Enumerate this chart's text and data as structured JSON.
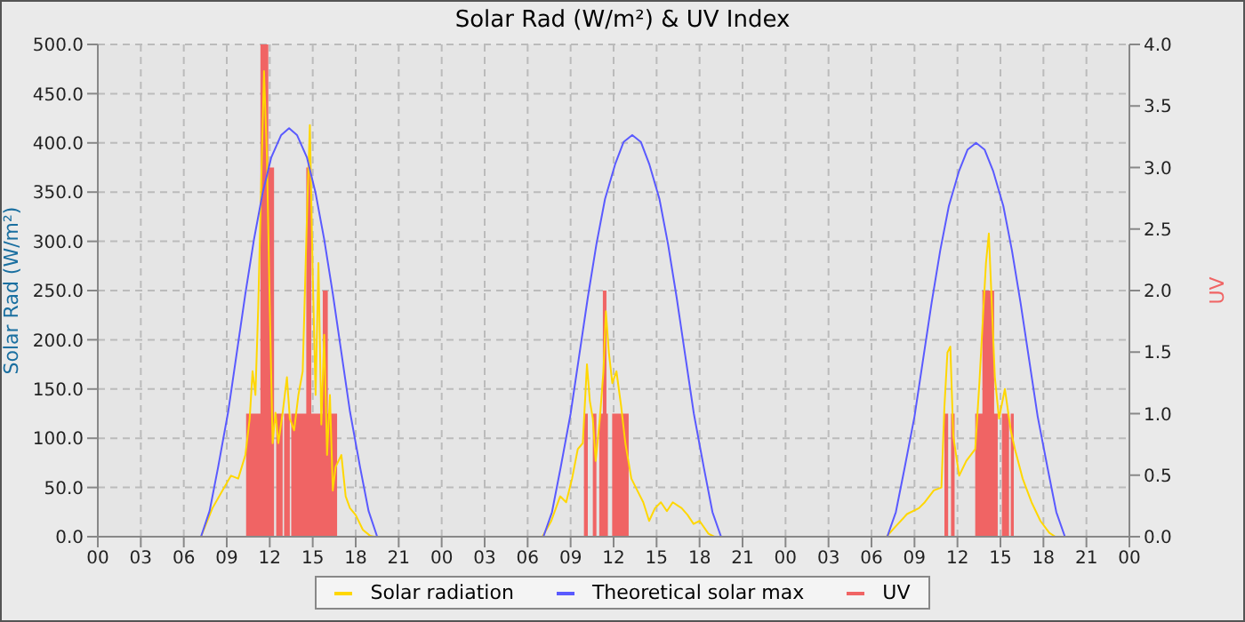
{
  "chart_data": {
    "type": "line",
    "title": "Solar Rad (W/m²) &  UV Index",
    "ylabel": "Solar Rad (W/m²)",
    "y2label": "UV",
    "xlim": [
      0,
      72
    ],
    "xticks": [
      {
        "value": 0,
        "label": "00"
      },
      {
        "value": 3,
        "label": "03"
      },
      {
        "value": 6,
        "label": "06"
      },
      {
        "value": 9,
        "label": "09"
      },
      {
        "value": 12,
        "label": "12"
      },
      {
        "value": 15,
        "label": "15"
      },
      {
        "value": 18,
        "label": "18"
      },
      {
        "value": 21,
        "label": "21"
      },
      {
        "value": 24,
        "label": "00"
      },
      {
        "value": 27,
        "label": "03"
      },
      {
        "value": 30,
        "label": "06"
      },
      {
        "value": 33,
        "label": "09"
      },
      {
        "value": 36,
        "label": "12"
      },
      {
        "value": 39,
        "label": "15"
      },
      {
        "value": 42,
        "label": "18"
      },
      {
        "value": 45,
        "label": "21"
      },
      {
        "value": 48,
        "label": "00"
      },
      {
        "value": 51,
        "label": "03"
      },
      {
        "value": 54,
        "label": "06"
      },
      {
        "value": 57,
        "label": "09"
      },
      {
        "value": 60,
        "label": "12"
      },
      {
        "value": 63,
        "label": "15"
      },
      {
        "value": 66,
        "label": "18"
      },
      {
        "value": 69,
        "label": "21"
      },
      {
        "value": 72,
        "label": "00"
      }
    ],
    "ylim": [
      0,
      500
    ],
    "yticks": [
      {
        "value": 0,
        "label": "0.0"
      },
      {
        "value": 50,
        "label": "50.0"
      },
      {
        "value": 100,
        "label": "100.0"
      },
      {
        "value": 150,
        "label": "150.0"
      },
      {
        "value": 200,
        "label": "200.0"
      },
      {
        "value": 250,
        "label": "250.0"
      },
      {
        "value": 300,
        "label": "300.0"
      },
      {
        "value": 350,
        "label": "350.0"
      },
      {
        "value": 400,
        "label": "400.0"
      },
      {
        "value": 450,
        "label": "450.0"
      },
      {
        "value": 500,
        "label": "500.0"
      }
    ],
    "y2lim": [
      0,
      4
    ],
    "y2ticks": [
      {
        "value": 0,
        "label": "0.0"
      },
      {
        "value": 0.5,
        "label": "0.5"
      },
      {
        "value": 1,
        "label": "1.0"
      },
      {
        "value": 1.5,
        "label": "1.5"
      },
      {
        "value": 2,
        "label": "2.0"
      },
      {
        "value": 2.5,
        "label": "2.5"
      },
      {
        "value": 3,
        "label": "3.0"
      },
      {
        "value": 3.5,
        "label": "3.5"
      },
      {
        "value": 4,
        "label": "4.0"
      }
    ],
    "grid": true,
    "legend": "bottom",
    "series": [
      {
        "name": "Solar radiation",
        "color": "#ffd700",
        "x": [
          0,
          7.2,
          8.0,
          8.7,
          9.3,
          9.8,
          10.3,
          10.6,
          10.8,
          11.0,
          11.2,
          11.4,
          11.6,
          11.8,
          12.0,
          12.2,
          12.4,
          12.6,
          12.9,
          13.2,
          13.4,
          13.7,
          14.0,
          14.3,
          14.6,
          14.8,
          15.0,
          15.2,
          15.4,
          15.6,
          15.8,
          16.0,
          16.2,
          16.4,
          16.6,
          17.0,
          17.3,
          17.6,
          18.0,
          18.5,
          19.0,
          19.3,
          31.03,
          31.65,
          32.27,
          32.69,
          33.1,
          33.5,
          33.85,
          34.14,
          34.34,
          34.55,
          34.75,
          35.04,
          35.29,
          35.46,
          35.67,
          35.91,
          36.2,
          36.53,
          36.82,
          37.24,
          37.65,
          38.07,
          38.48,
          38.89,
          39.3,
          39.72,
          40.13,
          40.75,
          41.17,
          41.58,
          42.0,
          42.62,
          43.03,
          55.04,
          55.66,
          56.48,
          57.31,
          57.72,
          58.35,
          58.88,
          59.09,
          59.3,
          59.5,
          59.71,
          60.12,
          60.62,
          61.24,
          61.53,
          61.78,
          61.99,
          62.19,
          62.4,
          62.61,
          62.9,
          63.31,
          63.72,
          64.01,
          64.55,
          65.17,
          65.79,
          66.41,
          66.83,
          72
        ],
        "values": [
          0,
          0,
          29,
          47,
          62,
          59,
          83,
          120,
          168,
          144,
          235,
          357,
          473,
          387,
          235,
          95,
          126,
          95,
          126,
          162,
          120,
          108,
          144,
          168,
          327,
          418,
          266,
          144,
          278,
          114,
          205,
          83,
          144,
          47,
          71,
          83,
          41,
          29,
          22,
          7,
          1,
          0,
          0,
          16,
          41,
          35,
          59,
          89,
          95,
          175,
          138,
          120,
          77,
          120,
          168,
          229,
          187,
          156,
          168,
          132,
          95,
          59,
          47,
          35,
          16,
          29,
          35,
          26,
          35,
          29,
          22,
          13,
          16,
          3,
          0,
          0,
          10,
          23,
          29,
          35,
          47,
          50,
          132,
          187,
          193,
          102,
          62,
          77,
          89,
          156,
          223,
          278,
          308,
          235,
          162,
          120,
          150,
          108,
          89,
          59,
          35,
          16,
          4,
          0,
          0
        ]
      },
      {
        "name": "Theoretical solar max",
        "color": "#5a5aff",
        "x": [
          0,
          7.2,
          7.8,
          8.4,
          9.1,
          9.7,
          10.3,
          10.9,
          11.5,
          12.1,
          12.8,
          13.35,
          13.9,
          14.6,
          15.2,
          15.8,
          16.4,
          17.0,
          17.6,
          18.3,
          18.9,
          19.5,
          31.1,
          31.7,
          32.3,
          33.0,
          33.6,
          34.2,
          34.8,
          35.4,
          36.1,
          36.7,
          37.3,
          37.9,
          38.5,
          39.2,
          39.8,
          40.4,
          41.0,
          41.6,
          42.3,
          42.9,
          43.5,
          55.1,
          55.7,
          56.3,
          57.0,
          57.6,
          58.2,
          58.8,
          59.4,
          60.1,
          60.7,
          61.3,
          61.9,
          62.5,
          63.2,
          63.8,
          64.4,
          65.0,
          65.6,
          66.3,
          66.9,
          67.5,
          72
        ],
        "values": [
          0,
          0,
          26,
          71,
          127,
          187,
          247,
          302,
          349,
          385,
          408,
          415,
          408,
          385,
          349,
          302,
          247,
          187,
          127,
          71,
          26,
          0,
          0,
          25,
          70,
          125,
          184,
          243,
          297,
          343,
          378,
          401,
          408,
          401,
          378,
          343,
          297,
          243,
          184,
          125,
          70,
          25,
          0,
          0,
          25,
          69,
          122,
          180,
          238,
          291,
          336,
          371,
          393,
          400,
          393,
          371,
          336,
          291,
          238,
          180,
          122,
          69,
          25,
          0,
          0
        ]
      },
      {
        "name": "UV",
        "type": "area",
        "axis": "y2",
        "color": "#f06464",
        "x": [
          0,
          10.35,
          11.35,
          11.9,
          12.3,
          12.45,
          12.9,
          13.0,
          13.4,
          13.5,
          14.55,
          14.9,
          15.7,
          16.05,
          16.7,
          33.93,
          34.2,
          34.55,
          34.8,
          35.0,
          35.25,
          35.5,
          35.6,
          35.9,
          37.05,
          59.09,
          59.35,
          59.55,
          59.8,
          61.24,
          61.74,
          62.56,
          62.81,
          63.1,
          63.6,
          63.72,
          63.93,
          72
        ],
        "values": [
          0,
          1,
          4,
          3,
          0,
          1,
          0,
          1,
          0,
          1,
          3,
          1,
          2,
          1,
          0,
          1,
          0,
          1,
          0,
          1,
          2,
          1,
          0,
          1,
          0,
          1,
          0,
          1,
          0,
          1,
          2,
          1,
          0,
          1,
          0,
          1,
          0,
          0
        ]
      }
    ]
  }
}
